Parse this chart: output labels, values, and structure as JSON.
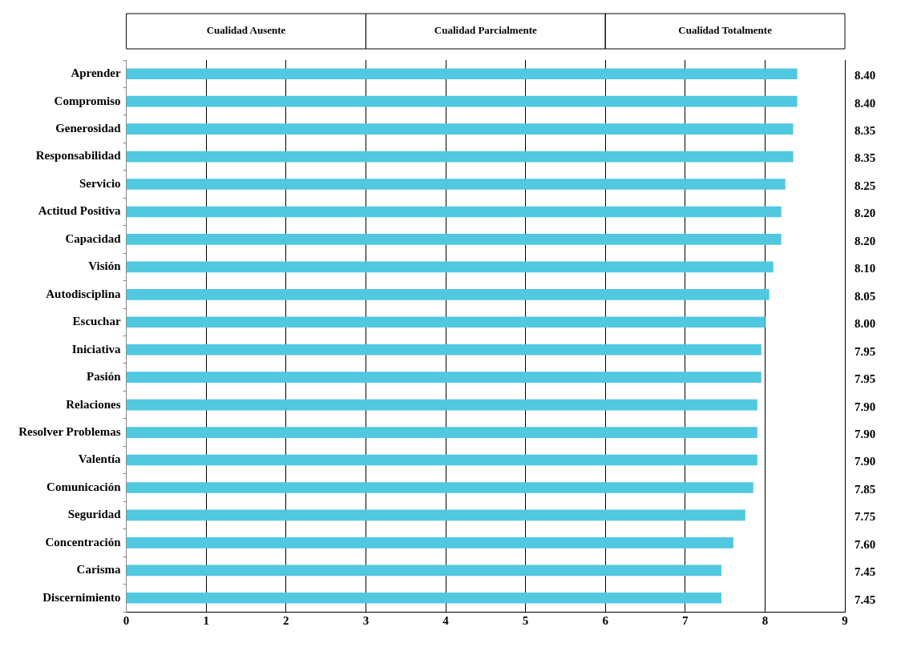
{
  "chart_data": {
    "type": "bar",
    "orientation": "horizontal",
    "categories": [
      "Aprender",
      "Compromiso",
      "Generosidad",
      "Responsabilidad",
      "Servicio",
      "Actitud Positiva",
      "Capacidad",
      "Visión",
      "Autodisciplina",
      "Escuchar",
      "Iniciativa",
      "Pasión",
      "Relaciones",
      "Resolver Problemas",
      "Valentía",
      "Comunicación",
      "Seguridad",
      "Concentración",
      "Carisma",
      "Discernimiento"
    ],
    "values": [
      8.4,
      8.4,
      8.35,
      8.35,
      8.25,
      8.2,
      8.2,
      8.1,
      8.05,
      8.0,
      7.95,
      7.95,
      7.9,
      7.9,
      7.9,
      7.85,
      7.75,
      7.6,
      7.45,
      7.45
    ],
    "value_labels": [
      "8.40",
      "8.40",
      "8.35",
      "8.35",
      "8.25",
      "8.20",
      "8.20",
      "8.10",
      "8.05",
      "8.00",
      "7.95",
      "7.95",
      "7.90",
      "7.90",
      "7.90",
      "7.85",
      "7.75",
      "7.60",
      "7.45",
      "7.45"
    ],
    "color": "#4fc8e0",
    "xlim": [
      0,
      9
    ],
    "xticks": [
      0,
      1,
      2,
      3,
      4,
      5,
      6,
      7,
      8,
      9
    ],
    "grid": "x",
    "legend": false,
    "annotations": [
      "Cualidad Ausente",
      "Cualidad Parcialmente",
      "Cualidad Totalmente"
    ]
  }
}
